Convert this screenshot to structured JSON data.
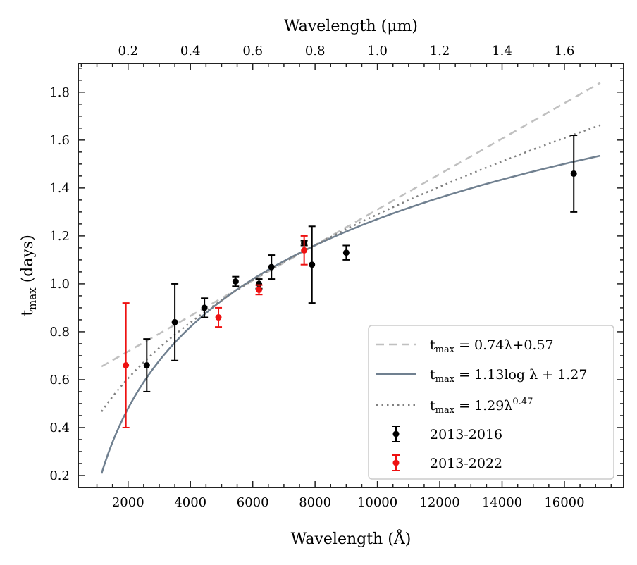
{
  "chart_data": {
    "type": "scatter",
    "xlabel": "Wavelength (Å)",
    "ylabel_main": "t",
    "ylabel_sub": "max",
    "ylabel_rest": " (days)",
    "top_xlabel": "Wavelength (μm)",
    "xlim": [
      400,
      17900
    ],
    "ylim": [
      0.15,
      1.92
    ],
    "x_ticks": [
      2000,
      4000,
      6000,
      8000,
      10000,
      12000,
      14000,
      16000
    ],
    "y_ticks": [
      0.2,
      0.4,
      0.6,
      0.8,
      1.0,
      1.2,
      1.4,
      1.6,
      1.8
    ],
    "y_tick_labels": [
      "0.2",
      "0.4",
      "0.6",
      "0.8",
      "1.0",
      "1.2",
      "1.4",
      "1.6",
      "1.8"
    ],
    "top_x_ticks_um": [
      0.2,
      0.4,
      0.6,
      0.8,
      1.0,
      1.2,
      1.4,
      1.6
    ],
    "top_x_tick_labels": [
      "0.2",
      "0.4",
      "0.6",
      "0.8",
      "1.0",
      "1.2",
      "1.4",
      "1.6"
    ],
    "legend_position": "lower-right",
    "series": [
      {
        "name": "2013-2016",
        "color": "#000000",
        "points": [
          {
            "x": 2600,
            "y": 0.66,
            "err": 0.11
          },
          {
            "x": 3500,
            "y": 0.84,
            "err": 0.16
          },
          {
            "x": 4450,
            "y": 0.9,
            "err": 0.04
          },
          {
            "x": 5450,
            "y": 1.01,
            "err": 0.02
          },
          {
            "x": 6200,
            "y": 1.0,
            "err": 0.02
          },
          {
            "x": 6600,
            "y": 1.07,
            "err": 0.05
          },
          {
            "x": 7650,
            "y": 1.17,
            "err": 0.01
          },
          {
            "x": 7900,
            "y": 1.08,
            "err": 0.16
          },
          {
            "x": 9000,
            "y": 1.13,
            "err": 0.03
          },
          {
            "x": 16300,
            "y": 1.46,
            "err": 0.16
          }
        ]
      },
      {
        "name": "2013-2022",
        "color": "#ee1111",
        "points": [
          {
            "x": 1930,
            "y": 0.66,
            "err": 0.26
          },
          {
            "x": 4900,
            "y": 0.86,
            "err": 0.04
          },
          {
            "x": 6200,
            "y": 0.975,
            "err": 0.02
          },
          {
            "x": 7650,
            "y": 1.14,
            "err": 0.06
          }
        ]
      }
    ],
    "fits": [
      {
        "kind": "linear",
        "a": 0.74,
        "b": 0.57,
        "color": "#c0c0c0",
        "style": "dashed",
        "label_pre": "t",
        "label_sub": "max",
        "label_post": " = 0.74λ+0.57"
      },
      {
        "kind": "log",
        "a": 1.13,
        "b": 1.27,
        "color": "#708090",
        "style": "solid",
        "label_pre": "t",
        "label_sub": "max",
        "label_post": " = 1.13log λ + 1.27"
      },
      {
        "kind": "power",
        "a": 1.29,
        "b": 0.47,
        "color": "#808080",
        "style": "dotted",
        "label_pre": "t",
        "label_sub": "max",
        "label_post": " = 1.29λ",
        "label_sup": "0.47"
      }
    ],
    "fit_x_range": [
      1150,
      17150
    ]
  }
}
